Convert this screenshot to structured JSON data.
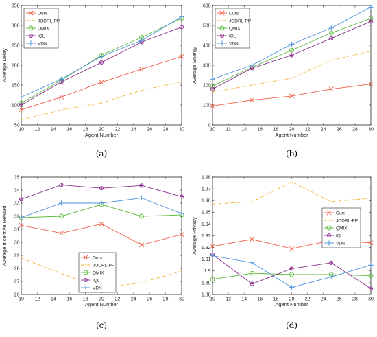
{
  "styles": {
    "Ours": {
      "color": "#f0604a",
      "dash": "",
      "marker": "x"
    },
    "JODRL-PP": {
      "color": "#f0ad1e",
      "dash": "4 2 1 2",
      "marker": "none"
    },
    "QMIX": {
      "color": "#58b83a",
      "dash": "",
      "marker": "o"
    },
    "IQL": {
      "color": "#8a2a8c",
      "dash": "",
      "marker": "*"
    },
    "VDN": {
      "color": "#4c92dc",
      "dash": "",
      "marker": "+"
    }
  },
  "chart_data": [
    {
      "type": "line",
      "caption": "(a)",
      "xlabel": "Agent Number",
      "ylabel": "Average Delay",
      "xlim": [
        10,
        30
      ],
      "ylim": [
        50,
        350
      ],
      "xticks": [
        10,
        12,
        14,
        16,
        18,
        20,
        22,
        24,
        26,
        28,
        30
      ],
      "yticks": [
        50,
        100,
        150,
        200,
        250,
        300,
        350
      ],
      "legend": "top-left",
      "x": [
        10,
        15,
        20,
        25,
        30
      ],
      "series": [
        {
          "name": "Ours",
          "values": [
            88,
            120,
            157,
            190,
            222
          ]
        },
        {
          "name": "JODRL-PP",
          "values": [
            63,
            88,
            105,
            137,
            158
          ]
        },
        {
          "name": "QMIX",
          "values": [
            105,
            162,
            225,
            270,
            318
          ]
        },
        {
          "name": "IQL",
          "values": [
            100,
            158,
            207,
            258,
            296
          ]
        },
        {
          "name": "VDN",
          "values": [
            120,
            165,
            222,
            262,
            322
          ]
        }
      ]
    },
    {
      "type": "line",
      "caption": "(b)",
      "xlabel": "Agent Number",
      "ylabel": "Average Energy",
      "xlim": [
        10,
        30
      ],
      "ylim": [
        0,
        600
      ],
      "xticks": [
        10,
        12,
        14,
        16,
        18,
        20,
        22,
        24,
        26,
        28,
        30
      ],
      "yticks": [
        0,
        100,
        200,
        300,
        400,
        500,
        600
      ],
      "legend": "top-left",
      "x": [
        10,
        15,
        20,
        25,
        30
      ],
      "series": [
        {
          "name": "Ours",
          "values": [
            95,
            125,
            145,
            180,
            205
          ]
        },
        {
          "name": "JODRL-PP",
          "values": [
            165,
            200,
            235,
            325,
            370
          ]
        },
        {
          "name": "QMIX",
          "values": [
            195,
            290,
            375,
            462,
            535
          ]
        },
        {
          "name": "IQL",
          "values": [
            180,
            285,
            350,
            435,
            520
          ]
        },
        {
          "name": "VDN",
          "values": [
            230,
            300,
            405,
            487,
            592
          ]
        }
      ]
    },
    {
      "type": "line",
      "caption": "(c)",
      "xlabel": "Agent Number",
      "ylabel": "Average Incentive Reward",
      "xlim": [
        10,
        30
      ],
      "ylim": [
        26,
        35
      ],
      "xticks": [
        10,
        12,
        14,
        16,
        18,
        20,
        22,
        24,
        26,
        28,
        30
      ],
      "yticks": [
        26,
        27,
        28,
        29,
        30,
        31,
        32,
        33,
        34,
        35
      ],
      "legend": "bottom-center",
      "x": [
        10,
        15,
        20,
        25,
        30
      ],
      "series": [
        {
          "name": "Ours",
          "values": [
            31.3,
            30.7,
            31.4,
            29.8,
            30.6
          ]
        },
        {
          "name": "JODRL-PP",
          "values": [
            28.8,
            27.6,
            26.5,
            26.9,
            27.8
          ]
        },
        {
          "name": "QMIX",
          "values": [
            31.9,
            32.0,
            32.9,
            32.0,
            32.1
          ]
        },
        {
          "name": "IQL",
          "values": [
            33.3,
            34.4,
            34.15,
            34.35,
            33.5
          ]
        },
        {
          "name": "VDN",
          "values": [
            31.9,
            33.0,
            33.0,
            33.4,
            32.2
          ]
        }
      ]
    },
    {
      "type": "line",
      "caption": "(d)",
      "xlabel": "Agent Number",
      "ylabel": "Average Privacy",
      "xlim": [
        10,
        30
      ],
      "ylim": [
        1.88,
        1.98
      ],
      "xticks": [
        10,
        12,
        14,
        16,
        18,
        20,
        22,
        24,
        26,
        28,
        30
      ],
      "yticks": [
        1.88,
        1.89,
        1.9,
        1.91,
        1.92,
        1.93,
        1.94,
        1.95,
        1.96,
        1.97,
        1.98
      ],
      "legend": "right-middle",
      "x": [
        10,
        15,
        20,
        25,
        30
      ],
      "series": [
        {
          "name": "Ours",
          "values": [
            1.921,
            1.927,
            1.919,
            1.926,
            1.924
          ]
        },
        {
          "name": "JODRL-PP",
          "values": [
            1.957,
            1.959,
            1.976,
            1.959,
            1.962
          ]
        },
        {
          "name": "QMIX",
          "values": [
            1.893,
            1.898,
            1.897,
            1.897,
            1.896
          ]
        },
        {
          "name": "IQL",
          "values": [
            1.914,
            1.889,
            1.902,
            1.907,
            1.885
          ]
        },
        {
          "name": "VDN",
          "values": [
            1.913,
            1.907,
            1.886,
            1.895,
            1.905
          ]
        }
      ]
    }
  ]
}
